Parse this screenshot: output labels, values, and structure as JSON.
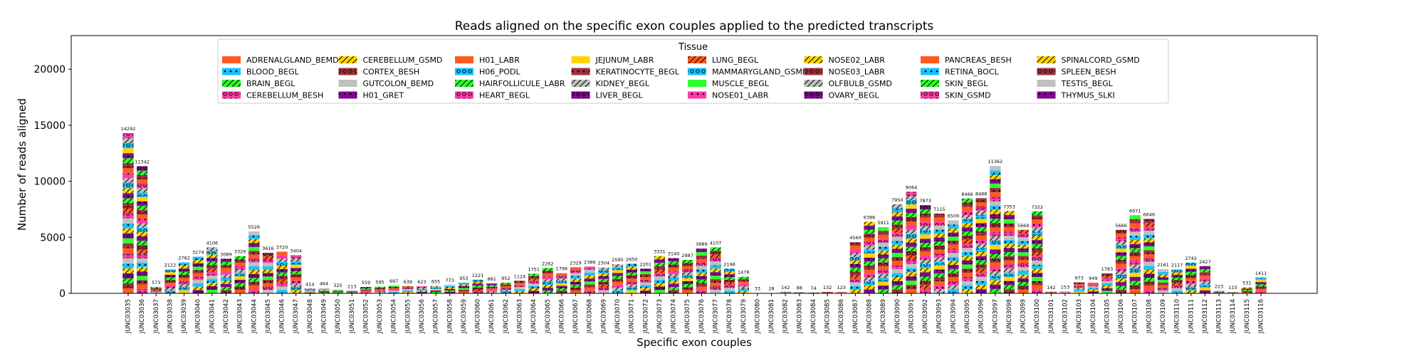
{
  "chart_data": {
    "type": "bar",
    "stacked": true,
    "title": "Reads aligned on the specific exon couples applied to the predicted transcripts",
    "xlabel": "Specific exon couples",
    "ylabel": "Number of reads aligned",
    "ylim": [
      0,
      23000
    ],
    "yticks": [
      0,
      5000,
      10000,
      15000,
      20000
    ],
    "grid": false,
    "legend": {
      "title": "Tissue",
      "placement": "top-center",
      "columns": 8,
      "entries": [
        {
          "name": "ADRENALGLAND_BEMD",
          "color": "#ff5a1f",
          "hatch": "none"
        },
        {
          "name": "BLOOD_BEGL",
          "color": "#18c2ff",
          "hatch": "dot"
        },
        {
          "name": "BRAIN_BEGL",
          "color": "#2cff2c",
          "hatch": "slash"
        },
        {
          "name": "CEREBELLUM_BESH",
          "color": "#ff3aa8",
          "hatch": "ring"
        },
        {
          "name": "CEREBELLUM_GSMD",
          "color": "#ffd400",
          "hatch": "slash"
        },
        {
          "name": "CORTEX_BESH",
          "color": "#a0303a",
          "hatch": "ring"
        },
        {
          "name": "GUTCOLON_BEMD",
          "color": "#c0c0c0",
          "hatch": "none"
        },
        {
          "name": "H01_GRET",
          "color": "#7d0a8c",
          "hatch": "dot"
        },
        {
          "name": "H01_LABR",
          "color": "#ff5a1f",
          "hatch": "none"
        },
        {
          "name": "H06_PODL",
          "color": "#18c2ff",
          "hatch": "ring"
        },
        {
          "name": "HAIRFOLLICULE_LABR",
          "color": "#2cff2c",
          "hatch": "slash"
        },
        {
          "name": "HEART_BEGL",
          "color": "#ff3aa8",
          "hatch": "ring"
        },
        {
          "name": "JEJUNUM_LABR",
          "color": "#ffd400",
          "hatch": "none"
        },
        {
          "name": "KERATINOCYTE_BEGL",
          "color": "#a0303a",
          "hatch": "dot"
        },
        {
          "name": "KIDNEY_BEGL",
          "color": "#c0c0c0",
          "hatch": "slash"
        },
        {
          "name": "LIVER_BEGL",
          "color": "#7d0a8c",
          "hatch": "ring"
        },
        {
          "name": "LUNG_BEGL",
          "color": "#ff5a1f",
          "hatch": "slash"
        },
        {
          "name": "MAMMARYGLAND_GSMD",
          "color": "#18c2ff",
          "hatch": "ring"
        },
        {
          "name": "MUSCLE_BEGL",
          "color": "#2cff2c",
          "hatch": "none"
        },
        {
          "name": "NOSE01_LABR",
          "color": "#ff3aa8",
          "hatch": "dot"
        },
        {
          "name": "NOSE02_LABR",
          "color": "#ffd400",
          "hatch": "slash"
        },
        {
          "name": "NOSE03_LABR",
          "color": "#a0303a",
          "hatch": "ring"
        },
        {
          "name": "OLFBULB_GSMD",
          "color": "#c0c0c0",
          "hatch": "slash"
        },
        {
          "name": "OVARY_BEGL",
          "color": "#7d0a8c",
          "hatch": "ring"
        },
        {
          "name": "PANCREAS_BESH",
          "color": "#ff5a1f",
          "hatch": "none"
        },
        {
          "name": "RETINA_BOCL",
          "color": "#18c2ff",
          "hatch": "dot"
        },
        {
          "name": "SKIN_BEGL",
          "color": "#2cff2c",
          "hatch": "slash"
        },
        {
          "name": "SKIN_GSMD",
          "color": "#ff3aa8",
          "hatch": "ring"
        },
        {
          "name": "SPINALCORD_GSMD",
          "color": "#ffd400",
          "hatch": "slash"
        },
        {
          "name": "SPLEEN_BESH",
          "color": "#a0303a",
          "hatch": "ring"
        },
        {
          "name": "TESTIS_BEGL",
          "color": "#c0c0c0",
          "hatch": "none"
        },
        {
          "name": "THYMUS_SLKI",
          "color": "#7d0a8c",
          "hatch": "dot"
        }
      ]
    },
    "categories": [
      "JUNC03035",
      "JUNC03036",
      "JUNC03037",
      "JUNC03038",
      "JUNC03039",
      "JUNC03040",
      "JUNC03041",
      "JUNC03042",
      "JUNC03043",
      "JUNC03044",
      "JUNC03045",
      "JUNC03046",
      "JUNC03047",
      "JUNC03048",
      "JUNC03049",
      "JUNC03050",
      "JUNC03051",
      "JUNC03052",
      "JUNC03053",
      "JUNC03054",
      "JUNC03055",
      "JUNC03056",
      "JUNC03057",
      "JUNC03058",
      "JUNC03059",
      "JUNC03060",
      "JUNC03061",
      "JUNC03062",
      "JUNC03063",
      "JUNC03064",
      "JUNC03065",
      "JUNC03066",
      "JUNC03067",
      "JUNC03068",
      "JUNC03069",
      "JUNC03070",
      "JUNC03071",
      "JUNC03072",
      "JUNC03073",
      "JUNC03074",
      "JUNC03075",
      "JUNC03076",
      "JUNC03077",
      "JUNC03078",
      "JUNC03079",
      "JUNC03080",
      "JUNC03081",
      "JUNC03082",
      "JUNC03083",
      "JUNC03084",
      "JUNC03085",
      "JUNC03086",
      "JUNC03087",
      "JUNC03088",
      "JUNC03089",
      "JUNC03090",
      "JUNC03091",
      "JUNC03092",
      "JUNC03093",
      "JUNC03094",
      "JUNC03095",
      "JUNC03096",
      "JUNC03097",
      "JUNC03098",
      "JUNC03099",
      "JUNC03100",
      "JUNC03101",
      "JUNC03102",
      "JUNC03103",
      "JUNC03104",
      "JUNC03105",
      "JUNC03106",
      "JUNC03107",
      "JUNC03108",
      "JUNC03109",
      "JUNC03110",
      "JUNC03111",
      "JUNC03112",
      "JUNC03113",
      "JUNC03114",
      "JUNC03115",
      "JUNC03116"
    ],
    "totals": [
      14292,
      11342,
      573,
      2122,
      2762,
      3274,
      4106,
      3089,
      3329,
      5526,
      3616,
      3720,
      3404,
      414,
      464,
      325,
      213,
      559,
      595,
      697,
      639,
      623,
      655,
      773,
      953,
      1221,
      881,
      952,
      1124,
      1751,
      2262,
      1796,
      2329,
      2386,
      2304,
      2595,
      2650,
      2201,
      3331,
      3140,
      2987,
      3989,
      4107,
      2196,
      1478,
      33,
      28,
      142,
      88,
      74,
      132,
      123,
      4560,
      6386,
      5911,
      7950,
      9064,
      7873,
      7115,
      6509,
      8466,
      8488,
      11362,
      7353,
      5669,
      7322,
      142,
      153,
      973,
      949,
      1783,
      5666,
      6971,
      6646,
      2161,
      2117,
      2742,
      2427,
      223,
      115,
      531,
      1411
    ],
    "value_labels": [
      "14292",
      "11342",
      "573",
      "2122",
      "2762",
      "3274",
      "4106",
      "3089",
      "3329",
      "5526",
      "3616",
      "3720",
      "3404",
      "414",
      "464",
      "325",
      "213",
      "559",
      "595",
      "697",
      "639",
      "623",
      "655",
      "773",
      "953",
      "1221",
      "881",
      "952",
      "1124",
      "1751",
      "2262",
      "1796",
      "2329",
      "2386",
      "2304",
      "2595",
      "2650",
      "2201",
      "3331",
      "3140",
      "2987",
      "3989",
      "4107",
      "2196",
      "1478",
      "33",
      "28",
      "142",
      "88",
      "74",
      "132",
      "123",
      "4560",
      "6386",
      "5911",
      "7950",
      "9064",
      "7873",
      "7115",
      "6509",
      "8466",
      "8488",
      "11362",
      "7353",
      "5669",
      "7322",
      "142",
      "153",
      "973",
      "949",
      "1783",
      "5666",
      "6971",
      "6646",
      "2161",
      "2117",
      "2742",
      "2427",
      "223",
      "115",
      "531",
      "1411"
    ]
  }
}
